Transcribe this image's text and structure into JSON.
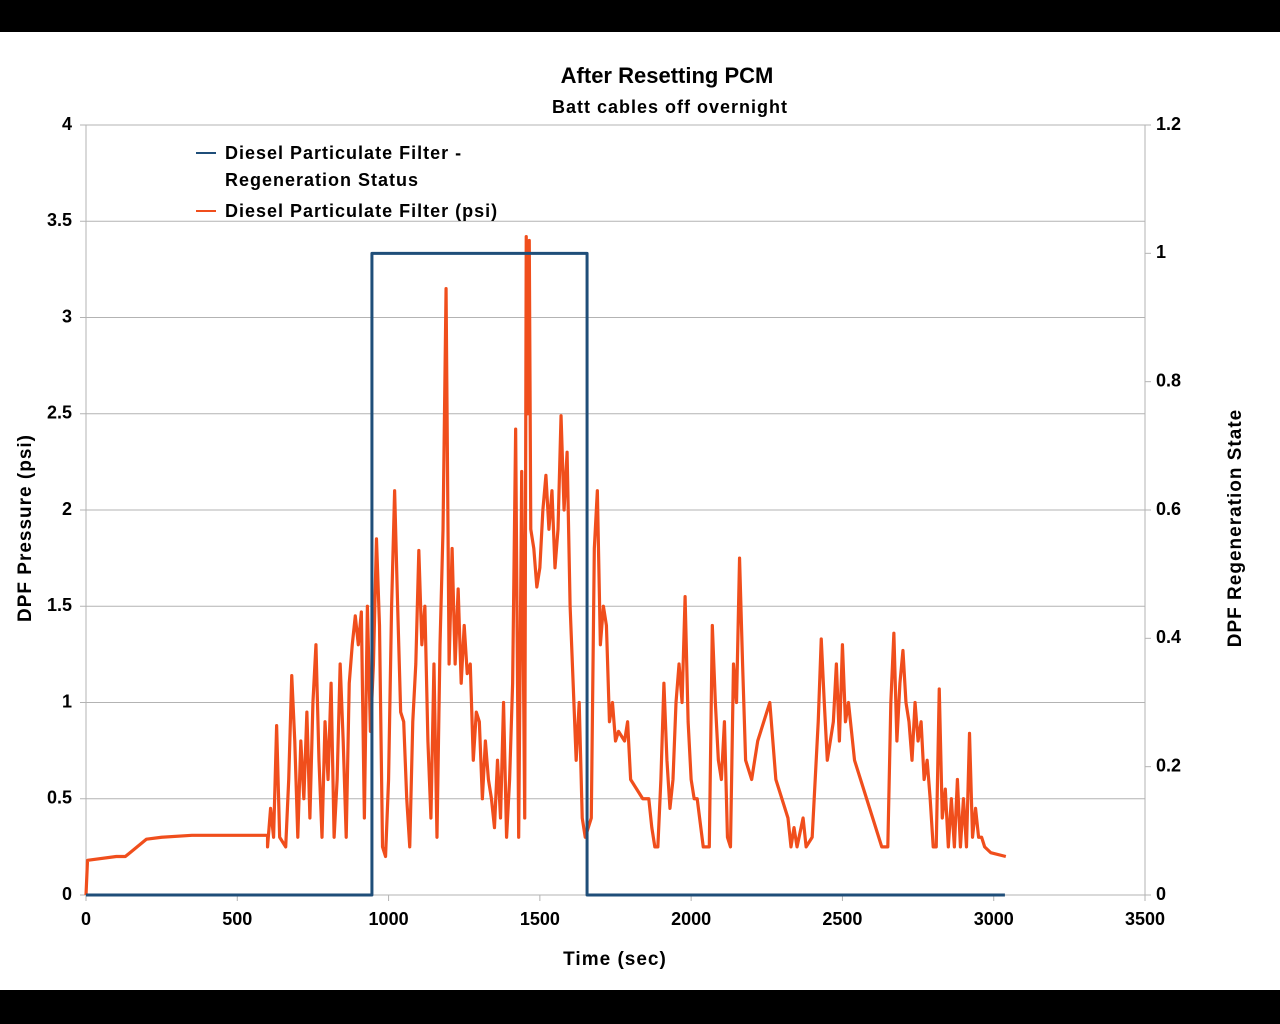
{
  "chart_data": {
    "type": "line",
    "title": "After Resetting PCM",
    "subtitle": "Batt cables off overnight",
    "x_label": "Time (sec)",
    "y_label": "DPF Pressure (psi)",
    "y2_label": "DPF Regeneration State",
    "xlim": [
      0,
      3500
    ],
    "xticks": [
      0,
      500,
      1000,
      1500,
      2000,
      2500,
      3000,
      3500
    ],
    "ylim": [
      0,
      4
    ],
    "yticks": [
      0,
      0.5,
      1,
      1.5,
      2,
      2.5,
      3,
      3.5,
      4
    ],
    "y2lim": [
      0,
      1.2
    ],
    "y2ticks": [
      0,
      0.2,
      0.4,
      0.6,
      0.8,
      1,
      1.2
    ],
    "grid": true,
    "legend": "top-left",
    "series": [
      {
        "name": "Diesel Particulate Filter - Regeneration Status",
        "color": "#1f4e79",
        "axis": "y2",
        "x": [
          0,
          945,
          945,
          1656,
          1656,
          3037
        ],
        "values": [
          0,
          0,
          1,
          1,
          0,
          0
        ]
      },
      {
        "name": "Diesel Particulate Filter (psi)",
        "color": "#f04e1c",
        "axis": "y",
        "x": [
          0,
          5,
          100,
          130,
          200,
          250,
          350,
          600,
          600,
          610,
          620,
          630,
          640,
          660,
          670,
          680,
          690,
          700,
          710,
          720,
          730,
          740,
          750,
          760,
          770,
          780,
          790,
          800,
          810,
          820,
          830,
          840,
          850,
          860,
          870,
          880,
          890,
          900,
          910,
          920,
          930,
          940,
          950,
          960,
          970,
          980,
          990,
          1000,
          1010,
          1020,
          1030,
          1040,
          1050,
          1060,
          1070,
          1080,
          1090,
          1100,
          1110,
          1120,
          1130,
          1140,
          1150,
          1160,
          1170,
          1180,
          1190,
          1200,
          1210,
          1220,
          1230,
          1240,
          1250,
          1260,
          1270,
          1280,
          1290,
          1300,
          1310,
          1320,
          1330,
          1340,
          1350,
          1360,
          1370,
          1380,
          1390,
          1400,
          1410,
          1420,
          1430,
          1440,
          1450,
          1455,
          1460,
          1465,
          1470,
          1480,
          1490,
          1500,
          1510,
          1520,
          1530,
          1540,
          1550,
          1560,
          1570,
          1580,
          1590,
          1600,
          1610,
          1620,
          1630,
          1640,
          1650,
          1660,
          1670,
          1680,
          1690,
          1700,
          1710,
          1720,
          1730,
          1740,
          1750,
          1760,
          1780,
          1790,
          1800,
          1820,
          1840,
          1860,
          1870,
          1880,
          1890,
          1900,
          1910,
          1920,
          1930,
          1940,
          1950,
          1960,
          1970,
          1980,
          1990,
          2000,
          2010,
          2020,
          2040,
          2060,
          2070,
          2080,
          2090,
          2100,
          2110,
          2120,
          2130,
          2140,
          2150,
          2160,
          2170,
          2180,
          2200,
          2220,
          2240,
          2260,
          2270,
          2280,
          2300,
          2320,
          2330,
          2340,
          2350,
          2370,
          2380,
          2400,
          2420,
          2430,
          2440,
          2450,
          2460,
          2470,
          2480,
          2490,
          2500,
          2510,
          2520,
          2530,
          2540,
          2560,
          2580,
          2600,
          2620,
          2630,
          2650,
          2660,
          2670,
          2680,
          2690,
          2700,
          2710,
          2720,
          2730,
          2740,
          2750,
          2760,
          2770,
          2780,
          2790,
          2800,
          2810,
          2820,
          2830,
          2840,
          2850,
          2860,
          2870,
          2880,
          2890,
          2900,
          2910,
          2920,
          2930,
          2940,
          2950,
          2960,
          2970,
          2990,
          3040
        ],
        "values": [
          0,
          0.18,
          0.2,
          0.2,
          0.29,
          0.3,
          0.31,
          0.31,
          0.25,
          0.45,
          0.3,
          0.88,
          0.3,
          0.25,
          0.6,
          1.14,
          0.8,
          0.3,
          0.8,
          0.5,
          0.95,
          0.4,
          1.0,
          1.3,
          0.7,
          0.3,
          0.9,
          0.6,
          1.1,
          0.3,
          0.6,
          1.2,
          0.8,
          0.3,
          1.1,
          1.3,
          1.45,
          1.3,
          1.47,
          0.4,
          1.5,
          0.85,
          1.2,
          1.85,
          1.4,
          0.25,
          0.2,
          0.6,
          1.5,
          2.1,
          1.5,
          0.95,
          0.9,
          0.5,
          0.25,
          0.9,
          1.2,
          1.79,
          1.3,
          1.5,
          0.8,
          0.4,
          1.2,
          0.3,
          1.3,
          1.9,
          3.15,
          1.2,
          1.8,
          1.2,
          1.59,
          1.1,
          1.4,
          1.15,
          1.2,
          0.7,
          0.95,
          0.9,
          0.5,
          0.8,
          0.6,
          0.5,
          0.35,
          0.7,
          0.4,
          1.0,
          0.3,
          0.6,
          1.1,
          2.42,
          0.3,
          2.2,
          0.4,
          3.42,
          2.5,
          3.4,
          1.9,
          1.8,
          1.6,
          1.7,
          2.0,
          2.18,
          1.9,
          2.1,
          1.7,
          1.9,
          2.49,
          2.0,
          2.3,
          1.5,
          1.1,
          0.7,
          1.0,
          0.4,
          0.3,
          0.35,
          0.4,
          1.8,
          2.1,
          1.3,
          1.5,
          1.4,
          0.9,
          1.0,
          0.8,
          0.85,
          0.8,
          0.9,
          0.6,
          0.55,
          0.5,
          0.5,
          0.35,
          0.25,
          0.25,
          0.6,
          1.1,
          0.7,
          0.45,
          0.6,
          1.0,
          1.2,
          1.0,
          1.55,
          0.9,
          0.6,
          0.5,
          0.5,
          0.25,
          0.25,
          1.4,
          1.0,
          0.7,
          0.6,
          0.9,
          0.3,
          0.25,
          1.2,
          1.0,
          1.75,
          1.2,
          0.7,
          0.6,
          0.8,
          0.9,
          1.0,
          0.8,
          0.6,
          0.5,
          0.4,
          0.25,
          0.35,
          0.25,
          0.4,
          0.25,
          0.3,
          0.9,
          1.33,
          1.0,
          0.7,
          0.8,
          0.9,
          1.2,
          0.8,
          1.3,
          0.9,
          1.0,
          0.85,
          0.7,
          0.6,
          0.5,
          0.4,
          0.3,
          0.25,
          0.25,
          1.0,
          1.36,
          0.8,
          1.1,
          1.27,
          1.0,
          0.9,
          0.7,
          1.0,
          0.8,
          0.9,
          0.6,
          0.7,
          0.5,
          0.25,
          0.25,
          1.07,
          0.4,
          0.55,
          0.25,
          0.5,
          0.25,
          0.6,
          0.25,
          0.5,
          0.25,
          0.84,
          0.3,
          0.45,
          0.3,
          0.3,
          0.25,
          0.22,
          0.2
        ]
      }
    ]
  }
}
